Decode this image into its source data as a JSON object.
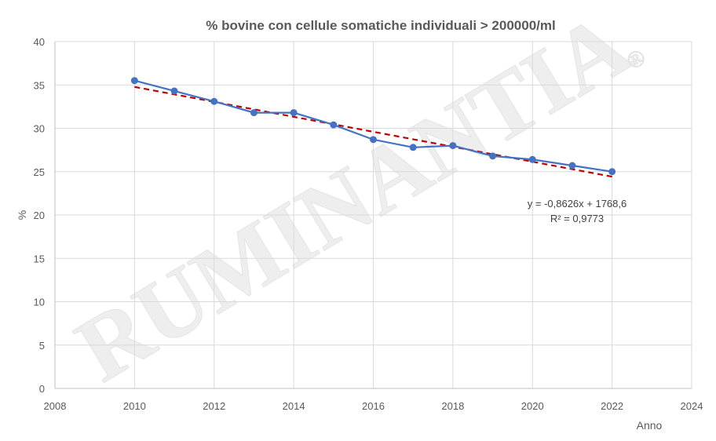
{
  "chart_data": {
    "type": "line",
    "title": "% bovine con cellule somatiche individuali > 200000/ml",
    "xlabel": "Anno",
    "ylabel": "%",
    "xlim": [
      2008,
      2024
    ],
    "ylim": [
      0,
      40
    ],
    "x_ticks": [
      2008,
      2010,
      2012,
      2014,
      2016,
      2018,
      2020,
      2022,
      2024
    ],
    "y_ticks": [
      0,
      5,
      10,
      15,
      20,
      25,
      30,
      35,
      40
    ],
    "grid": true,
    "series": [
      {
        "color": "#4472C4",
        "x": [
          2010,
          2011,
          2012,
          2013,
          2014,
          2015,
          2016,
          2017,
          2018,
          2019,
          2020,
          2021,
          2022
        ],
        "y": [
          35.5,
          34.3,
          33.1,
          31.8,
          31.8,
          30.4,
          28.7,
          27.8,
          28.0,
          26.8,
          26.4,
          25.7,
          25.0
        ]
      }
    ],
    "trendline": {
      "type": "linear",
      "slope": -0.8626,
      "intercept": 1768.6,
      "color": "#C00000",
      "x_range": [
        2010,
        2022
      ],
      "equation": "y = -0,8626x + 1768,6",
      "r_squared": "R² = 0,9773"
    },
    "watermark": {
      "text": "RUMINANTIA",
      "symbol": "®"
    }
  }
}
